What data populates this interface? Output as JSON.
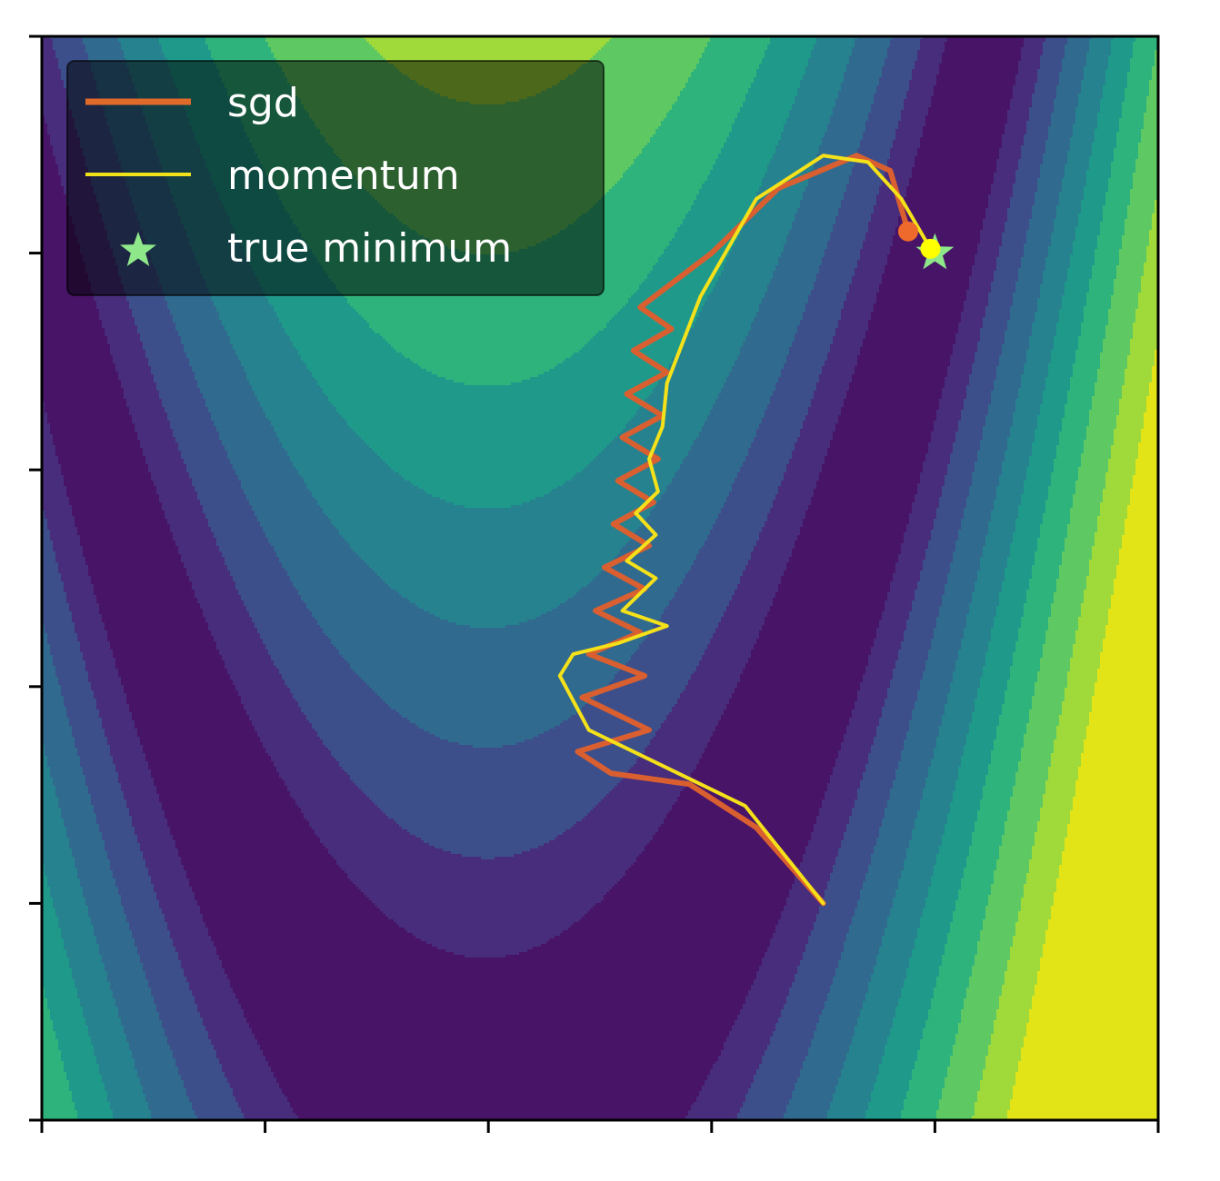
{
  "chart_data": {
    "type": "line",
    "title": "",
    "xlabel": "",
    "ylabel": "",
    "xlim": [
      -2,
      3
    ],
    "ylim": [
      -1,
      4
    ],
    "x_ticks": [
      -2,
      -1,
      0,
      1,
      2,
      3
    ],
    "y_ticks": [
      -1,
      0,
      1,
      2,
      3,
      4
    ],
    "tick_labels_visible": false,
    "grid": false,
    "legend_position": "top-left",
    "background": {
      "kind": "filled-contour",
      "colormap": "viridis",
      "levels": [
        0,
        60,
        150,
        300,
        520,
        800,
        1150,
        1600,
        2200,
        2900,
        1000000000.0
      ],
      "level_colors": [
        "#481467",
        "#472d7b",
        "#3c4f8a",
        "#306a8e",
        "#26828e",
        "#1f9a8a",
        "#2eb37c",
        "#5ec962",
        "#9fda3a",
        "#e3e418"
      ]
    },
    "series": [
      {
        "name": "sgd",
        "color": "#d95f30",
        "x": [
          1.5,
          1.2,
          0.9,
          0.55,
          0.4,
          0.72,
          0.42,
          0.7,
          0.45,
          0.68,
          0.48,
          0.7,
          0.52,
          0.72,
          0.56,
          0.74,
          0.58,
          0.76,
          0.6,
          0.78,
          0.62,
          0.8,
          0.65,
          0.82,
          0.68,
          1.0,
          1.3,
          1.65,
          1.8,
          1.88
        ],
        "y": [
          0.0,
          0.35,
          0.55,
          0.6,
          0.7,
          0.8,
          0.95,
          1.05,
          1.15,
          1.25,
          1.35,
          1.45,
          1.55,
          1.65,
          1.75,
          1.85,
          1.95,
          2.05,
          2.15,
          2.25,
          2.35,
          2.45,
          2.55,
          2.65,
          2.75,
          3.0,
          3.3,
          3.45,
          3.38,
          3.1
        ]
      },
      {
        "name": "momentum",
        "color": "#f5e11a",
        "x": [
          1.5,
          1.15,
          0.75,
          0.45,
          0.32,
          0.38,
          0.58,
          0.8,
          0.6,
          0.75,
          0.62,
          0.75,
          0.66,
          0.76,
          0.72,
          0.78,
          0.8,
          0.95,
          1.2,
          1.5,
          1.7,
          1.85,
          1.98
        ],
        "y": [
          0.0,
          0.45,
          0.65,
          0.8,
          1.05,
          1.15,
          1.2,
          1.28,
          1.35,
          1.5,
          1.58,
          1.7,
          1.8,
          1.9,
          2.05,
          2.2,
          2.4,
          2.8,
          3.25,
          3.45,
          3.42,
          3.25,
          3.02
        ]
      }
    ],
    "end_markers": [
      {
        "series": "sgd",
        "x": 1.88,
        "y": 3.1,
        "color": "#ee6a2c"
      },
      {
        "series": "momentum",
        "x": 1.98,
        "y": 3.02,
        "color": "#ffff00"
      }
    ],
    "true_minimum": {
      "name": "true minimum",
      "x": 2.0,
      "y": 3.0,
      "marker": "star",
      "color": "#8ee88a"
    },
    "legend": [
      {
        "label": "sgd",
        "kind": "line",
        "color": "#e06a2a"
      },
      {
        "label": "momentum",
        "kind": "line",
        "color": "#f0e21a"
      },
      {
        "label": "true minimum",
        "kind": "star",
        "color": "#8ee88a"
      }
    ]
  }
}
